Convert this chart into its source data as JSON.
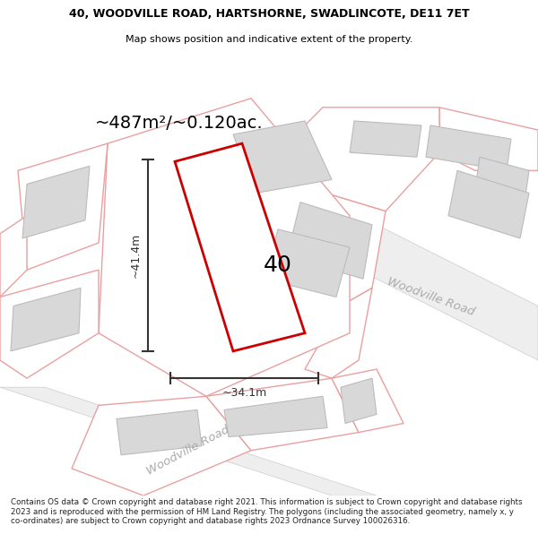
{
  "title_line1": "40, WOODVILLE ROAD, HARTSHORNE, SWADLINCOTE, DE11 7ET",
  "title_line2": "Map shows position and indicative extent of the property.",
  "area_text": "~487m²/~0.120ac.",
  "dim_width": "~34.1m",
  "dim_height": "~41.4m",
  "label_40": "40",
  "road_label_bottom": "Woodville Road",
  "road_label_right": "Woodville Road",
  "footer": "Contains OS data © Crown copyright and database right 2021. This information is subject to Crown copyright and database rights 2023 and is reproduced with the permission of HM Land Registry. The polygons (including the associated geometry, namely x, y co-ordinates) are subject to Crown copyright and database rights 2023 Ordnance Survey 100026316.",
  "bg_color": "#ffffff",
  "map_bg": "#ffffff",
  "plot_color_red": "#cc0000",
  "plot_color_pink": "#f0a0a0",
  "plot_outline_pink": "#e8a0a0",
  "building_color": "#d8d8d8",
  "building_edge": "#bbbbbb",
  "road_text_color": "#aaaaaa",
  "dim_color": "#333333",
  "title_color": "#000000",
  "footer_color": "#222222"
}
